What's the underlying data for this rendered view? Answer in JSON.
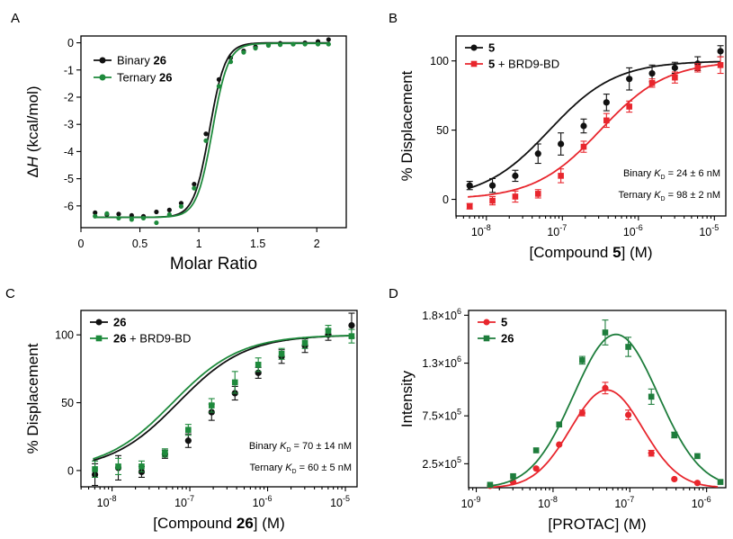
{
  "colors": {
    "black": "#111111",
    "green": "#1e8a3c",
    "red": "#e8262d",
    "dgreen": "#1e7d3c"
  },
  "chart_data": [
    {
      "panel": "A",
      "type": "line",
      "xlabel": "Molar Ratio",
      "ylabel_pre": "Δ",
      "ylabel_italic": "H",
      "ylabel_post": " (kcal/mol)",
      "xlim": [
        0,
        2.25
      ],
      "ylim": [
        -6.8,
        0.25
      ],
      "xticks": [
        0,
        0.5,
        1,
        1.5,
        2
      ],
      "xtick_labels": [
        "0",
        "0.5",
        "1",
        "1.5",
        "2"
      ],
      "yticks": [
        0,
        -1,
        -2,
        -3,
        -4,
        -5,
        -6
      ],
      "ytick_labels": [
        "0",
        "-1",
        "-2",
        "-3",
        "-4",
        "-5",
        "-6"
      ],
      "series": [
        {
          "name_pre": "Binary ",
          "name_bold": "26",
          "color": "#111111",
          "marker": "circle",
          "x": [
            0.12,
            0.22,
            0.32,
            0.43,
            0.53,
            0.64,
            0.75,
            0.85,
            0.96,
            1.06,
            1.17,
            1.27,
            1.38,
            1.48,
            1.59,
            1.69,
            1.8,
            1.9,
            2.01,
            2.1
          ],
          "y": [
            -6.25,
            -6.32,
            -6.3,
            -6.35,
            -6.38,
            -6.22,
            -6.15,
            -5.9,
            -5.2,
            -3.35,
            -1.35,
            -0.55,
            -0.3,
            -0.15,
            -0.08,
            -0.02,
            -0.05,
            0.0,
            0.05,
            0.12
          ],
          "fit_mid": 1.09,
          "fit_k": 15,
          "fit_lo": -6.42,
          "fit_hi": 0.0
        },
        {
          "name_pre": "Ternary ",
          "name_bold": "26",
          "color": "#1e8a3c",
          "marker": "circle",
          "x": [
            0.12,
            0.22,
            0.32,
            0.43,
            0.53,
            0.64,
            0.75,
            0.85,
            0.96,
            1.06,
            1.17,
            1.27,
            1.38,
            1.48,
            1.59,
            1.69,
            1.8,
            1.9,
            2.01,
            2.1
          ],
          "y": [
            -6.38,
            -6.28,
            -6.45,
            -6.5,
            -6.45,
            -6.62,
            -6.32,
            -6.02,
            -5.35,
            -3.6,
            -1.6,
            -0.7,
            -0.35,
            -0.2,
            -0.1,
            -0.07,
            -0.05,
            -0.05,
            -0.05,
            -0.05
          ],
          "fit_mid": 1.115,
          "fit_k": 15,
          "fit_lo": -6.42,
          "fit_hi": -0.02
        }
      ],
      "legend_placement": "top-left"
    },
    {
      "panel": "B",
      "type": "scatter",
      "xlabel_pre": "[Compound ",
      "xlabel_bold": "5",
      "xlabel_post": "] (M)",
      "ylabel": "% Displacement",
      "xlog": true,
      "xlim": [
        -8.4,
        -4.85
      ],
      "ylim": [
        -12,
        118
      ],
      "xticks": [
        -8,
        -7,
        -6,
        -5
      ],
      "xtick_labels": [
        "10",
        "10",
        "10",
        "10"
      ],
      "xtick_exps": [
        "-8",
        "-7",
        "-6",
        "-5"
      ],
      "yticks": [
        0,
        50,
        100
      ],
      "ytick_labels": [
        "0",
        "50",
        "100"
      ],
      "series": [
        {
          "name_bold": "5",
          "name_post": "",
          "color": "#111111",
          "marker": "circle",
          "logx": [
            -8.22,
            -7.92,
            -7.62,
            -7.32,
            -7.02,
            -6.72,
            -6.42,
            -6.12,
            -5.82,
            -5.52,
            -5.22,
            -4.92
          ],
          "y": [
            10,
            10,
            17,
            33,
            40,
            53,
            70,
            87,
            91,
            95,
            98,
            107
          ],
          "err": [
            3,
            5,
            4,
            7,
            8,
            5,
            6,
            8,
            6,
            4,
            5,
            4
          ],
          "fit_logec50": -7.17,
          "fit_hill": 1.0,
          "fit_lo": 0,
          "fit_hi": 100
        },
        {
          "name_bold": "5",
          "name_post": " + BRD9-BD",
          "color": "#e8262d",
          "marker": "square",
          "logx": [
            -8.22,
            -7.92,
            -7.62,
            -7.32,
            -7.02,
            -6.72,
            -6.42,
            -6.12,
            -5.82,
            -5.52,
            -5.22,
            -4.92
          ],
          "y": [
            -5,
            -1,
            2,
            4,
            17,
            38,
            57,
            67,
            84,
            88,
            95,
            97
          ],
          "err": [
            2,
            3,
            4,
            3,
            5,
            4,
            5,
            4,
            3,
            4,
            3,
            6
          ],
          "fit_logec50": -6.5,
          "fit_hill": 1.0,
          "fit_lo": 0,
          "fit_hi": 100
        }
      ],
      "annotations": [
        {
          "pre": "Binary ",
          "k": "K",
          "sub": "D",
          "post": " =  24 ± 6 nM"
        },
        {
          "pre": "Ternary ",
          "k": "K",
          "sub": "D",
          "post": " = 98 ± 2 nM"
        }
      ],
      "legend_placement": "top-left"
    },
    {
      "panel": "C",
      "type": "scatter",
      "xlabel_pre": "[Compound ",
      "xlabel_bold": "26",
      "xlabel_post": "] (M)",
      "ylabel": "% Displacement",
      "xlog": true,
      "xlim": [
        -8.4,
        -4.85
      ],
      "ylim": [
        -12,
        118
      ],
      "xticks": [
        -8,
        -7,
        -6,
        -5
      ],
      "xtick_labels": [
        "10",
        "10",
        "10",
        "10"
      ],
      "xtick_exps": [
        "-8",
        "-7",
        "-6",
        "-5"
      ],
      "yticks": [
        0,
        50,
        100
      ],
      "ytick_labels": [
        "0",
        "50",
        "100"
      ],
      "series": [
        {
          "name_bold": "26",
          "name_post": "",
          "color": "#111111",
          "marker": "circle",
          "logx": [
            -8.22,
            -7.92,
            -7.62,
            -7.32,
            -7.02,
            -6.72,
            -6.42,
            -6.12,
            -5.82,
            -5.52,
            -5.22,
            -4.92
          ],
          "y": [
            -3,
            2,
            -1,
            12,
            22,
            43,
            57,
            72,
            84,
            92,
            100,
            107
          ],
          "err": [
            8,
            9,
            4,
            3,
            5,
            6,
            5,
            4,
            5,
            5,
            4,
            9
          ],
          "fit_logec50": -7.15,
          "fit_hill": 1.0,
          "fit_lo": 0,
          "fit_hi": 100
        },
        {
          "name_bold": "26",
          "name_post": " + BRD9-BD",
          "color": "#1e8a3c",
          "marker": "square",
          "logx": [
            -8.22,
            -7.92,
            -7.62,
            -7.32,
            -7.02,
            -6.72,
            -6.42,
            -6.12,
            -5.82,
            -5.52,
            -5.22,
            -4.92
          ],
          "y": [
            1,
            3,
            3,
            13,
            30,
            48,
            65,
            78,
            86,
            94,
            103,
            99
          ],
          "err": [
            6,
            6,
            4,
            3,
            4,
            5,
            8,
            5,
            4,
            4,
            4,
            5
          ],
          "fit_logec50": -7.22,
          "fit_hill": 1.0,
          "fit_lo": 0,
          "fit_hi": 100
        }
      ],
      "annotations": [
        {
          "pre": "Binary ",
          "k": "K",
          "sub": "D",
          "post": " =  70 ± 14 nM"
        },
        {
          "pre": "Ternary ",
          "k": "K",
          "sub": "D",
          "post": " = 60 ± 5 nM"
        }
      ],
      "legend_placement": "top-left"
    },
    {
      "panel": "D",
      "type": "scatter",
      "xlabel": "[PROTAC] (M)",
      "ylabel": "Intensity",
      "xlog": true,
      "xlim": [
        -9.1,
        -5.75
      ],
      "ylim": [
        0,
        1.85
      ],
      "xticks": [
        -9,
        -8,
        -7,
        -6
      ],
      "xtick_labels": [
        "10",
        "10",
        "10",
        "10"
      ],
      "xtick_exps": [
        "-9",
        "-8",
        "-7",
        "-6"
      ],
      "yticks": [
        0.25,
        0.75,
        1.3,
        1.8
      ],
      "ytick_labels": [
        "2.5×10",
        "7.5×10",
        "1.3×10",
        "1.8×10"
      ],
      "ytick_exps": [
        "5",
        "5",
        "6",
        "6"
      ],
      "series": [
        {
          "name_bold": "5",
          "name_post": "",
          "color": "#e8262d",
          "marker": "circle",
          "logx": [
            -8.82,
            -8.52,
            -8.22,
            -7.92,
            -7.62,
            -7.32,
            -7.02,
            -6.72,
            -6.42,
            -6.12
          ],
          "y": [
            0.02,
            0.06,
            0.2,
            0.45,
            0.78,
            1.04,
            0.76,
            0.36,
            0.09,
            0.05
          ],
          "err": [
            0,
            0,
            0,
            0,
            0.03,
            0.06,
            0.05,
            0.03,
            0,
            0
          ],
          "fit_center": -7.3,
          "fit_sigma": 0.47,
          "fit_peak": 1.02
        },
        {
          "name_bold": "26",
          "name_post": "",
          "color": "#1e7d3c",
          "marker": "square",
          "logx": [
            -8.82,
            -8.52,
            -8.22,
            -7.92,
            -7.62,
            -7.32,
            -7.02,
            -6.72,
            -6.42,
            -6.12,
            -5.82
          ],
          "y": [
            0.03,
            0.12,
            0.39,
            0.66,
            1.33,
            1.62,
            1.47,
            0.95,
            0.55,
            0.33,
            0.06
          ],
          "err": [
            0,
            0,
            0,
            0,
            0.04,
            0.13,
            0.1,
            0.08,
            0.03,
            0,
            0
          ],
          "fit_center": -7.18,
          "fit_sigma": 0.55,
          "fit_peak": 1.6
        }
      ],
      "legend_placement": "top-left"
    }
  ]
}
